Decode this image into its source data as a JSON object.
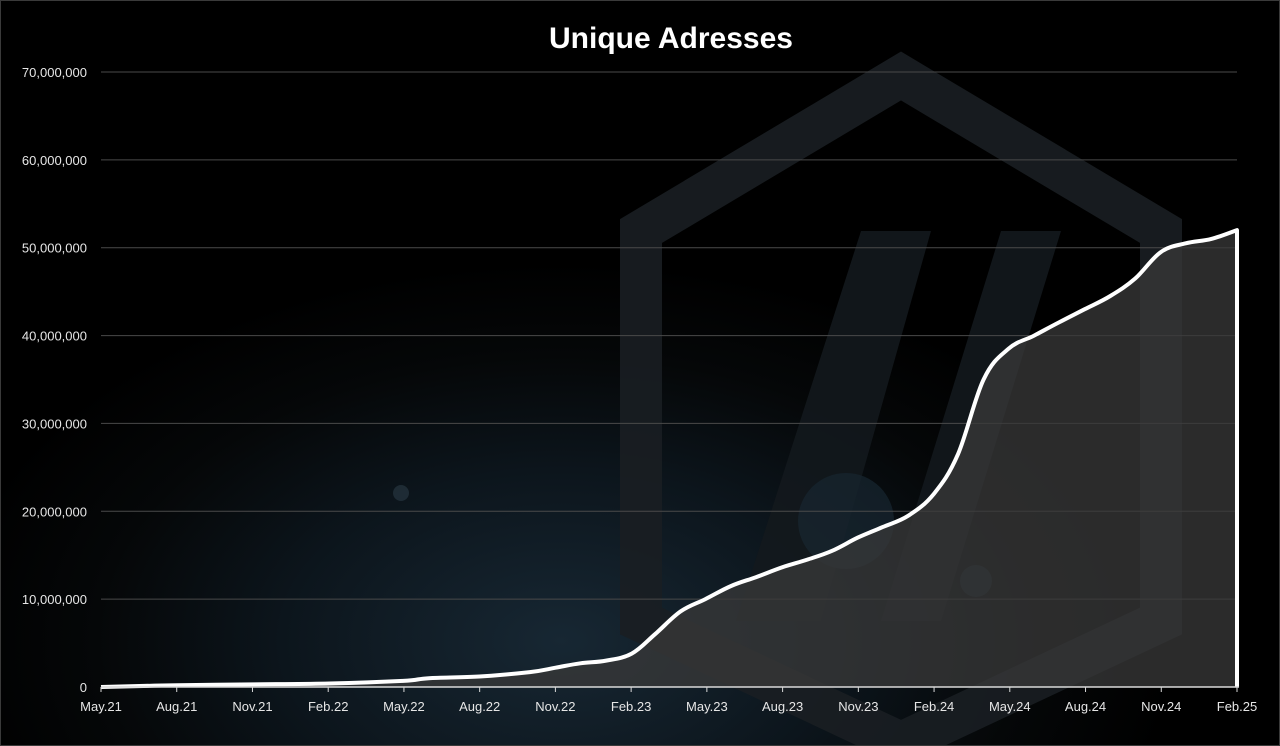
{
  "chart_data": {
    "type": "area",
    "title": "Unique Adresses",
    "xlabel": "",
    "ylabel": "",
    "ylim": [
      0,
      70000000
    ],
    "yticks": [
      0,
      10000000,
      20000000,
      30000000,
      40000000,
      50000000,
      60000000,
      70000000
    ],
    "ytick_labels": [
      "0",
      "10,000,000",
      "20,000,000",
      "30,000,000",
      "40,000,000",
      "50,000,000",
      "60,000,000",
      "70,000,000"
    ],
    "xtick_labels": [
      "May.21",
      "Aug.21",
      "Nov.21",
      "Feb.22",
      "May.22",
      "Aug.22",
      "Nov.22",
      "Feb.23",
      "May.23",
      "Aug.23",
      "Nov.23",
      "Feb.24",
      "May.24",
      "Aug.24",
      "Nov.24",
      "Feb.25"
    ],
    "grid": true,
    "legend": "none",
    "colors": {
      "line": "#ffffff",
      "area": "#3a3a3a",
      "grid": "#4a4a4a",
      "background": "#000000"
    },
    "series": [
      {
        "x": [
          "2021-05",
          "2021-08",
          "2021-11",
          "2022-02",
          "2022-05",
          "2022-06",
          "2022-08",
          "2022-10",
          "2022-11",
          "2022-12",
          "2023-01",
          "2023-02",
          "2023-03",
          "2023-04",
          "2023-05",
          "2023-06",
          "2023-07",
          "2023-08",
          "2023-09",
          "2023-10",
          "2023-11",
          "2023-12",
          "2024-01",
          "2024-02",
          "2024-03",
          "2024-04",
          "2024-05",
          "2024-06",
          "2024-07",
          "2024-08",
          "2024-09",
          "2024-10",
          "2024-11",
          "2024-12",
          "2025-01",
          "2025-02"
        ],
        "values": [
          0,
          200000,
          300000,
          400000,
          700000,
          1000000,
          1200000,
          1700000,
          2200000,
          2700000,
          3000000,
          3800000,
          6000000,
          8600000,
          10000000,
          11500000,
          12500000,
          13600000,
          14500000,
          15500000,
          17000000,
          18200000,
          19500000,
          22000000,
          26500000,
          35000000,
          38500000,
          40000000,
          41500000,
          43000000,
          44500000,
          46500000,
          49500000,
          50500000,
          51000000,
          52000000
        ]
      }
    ]
  }
}
